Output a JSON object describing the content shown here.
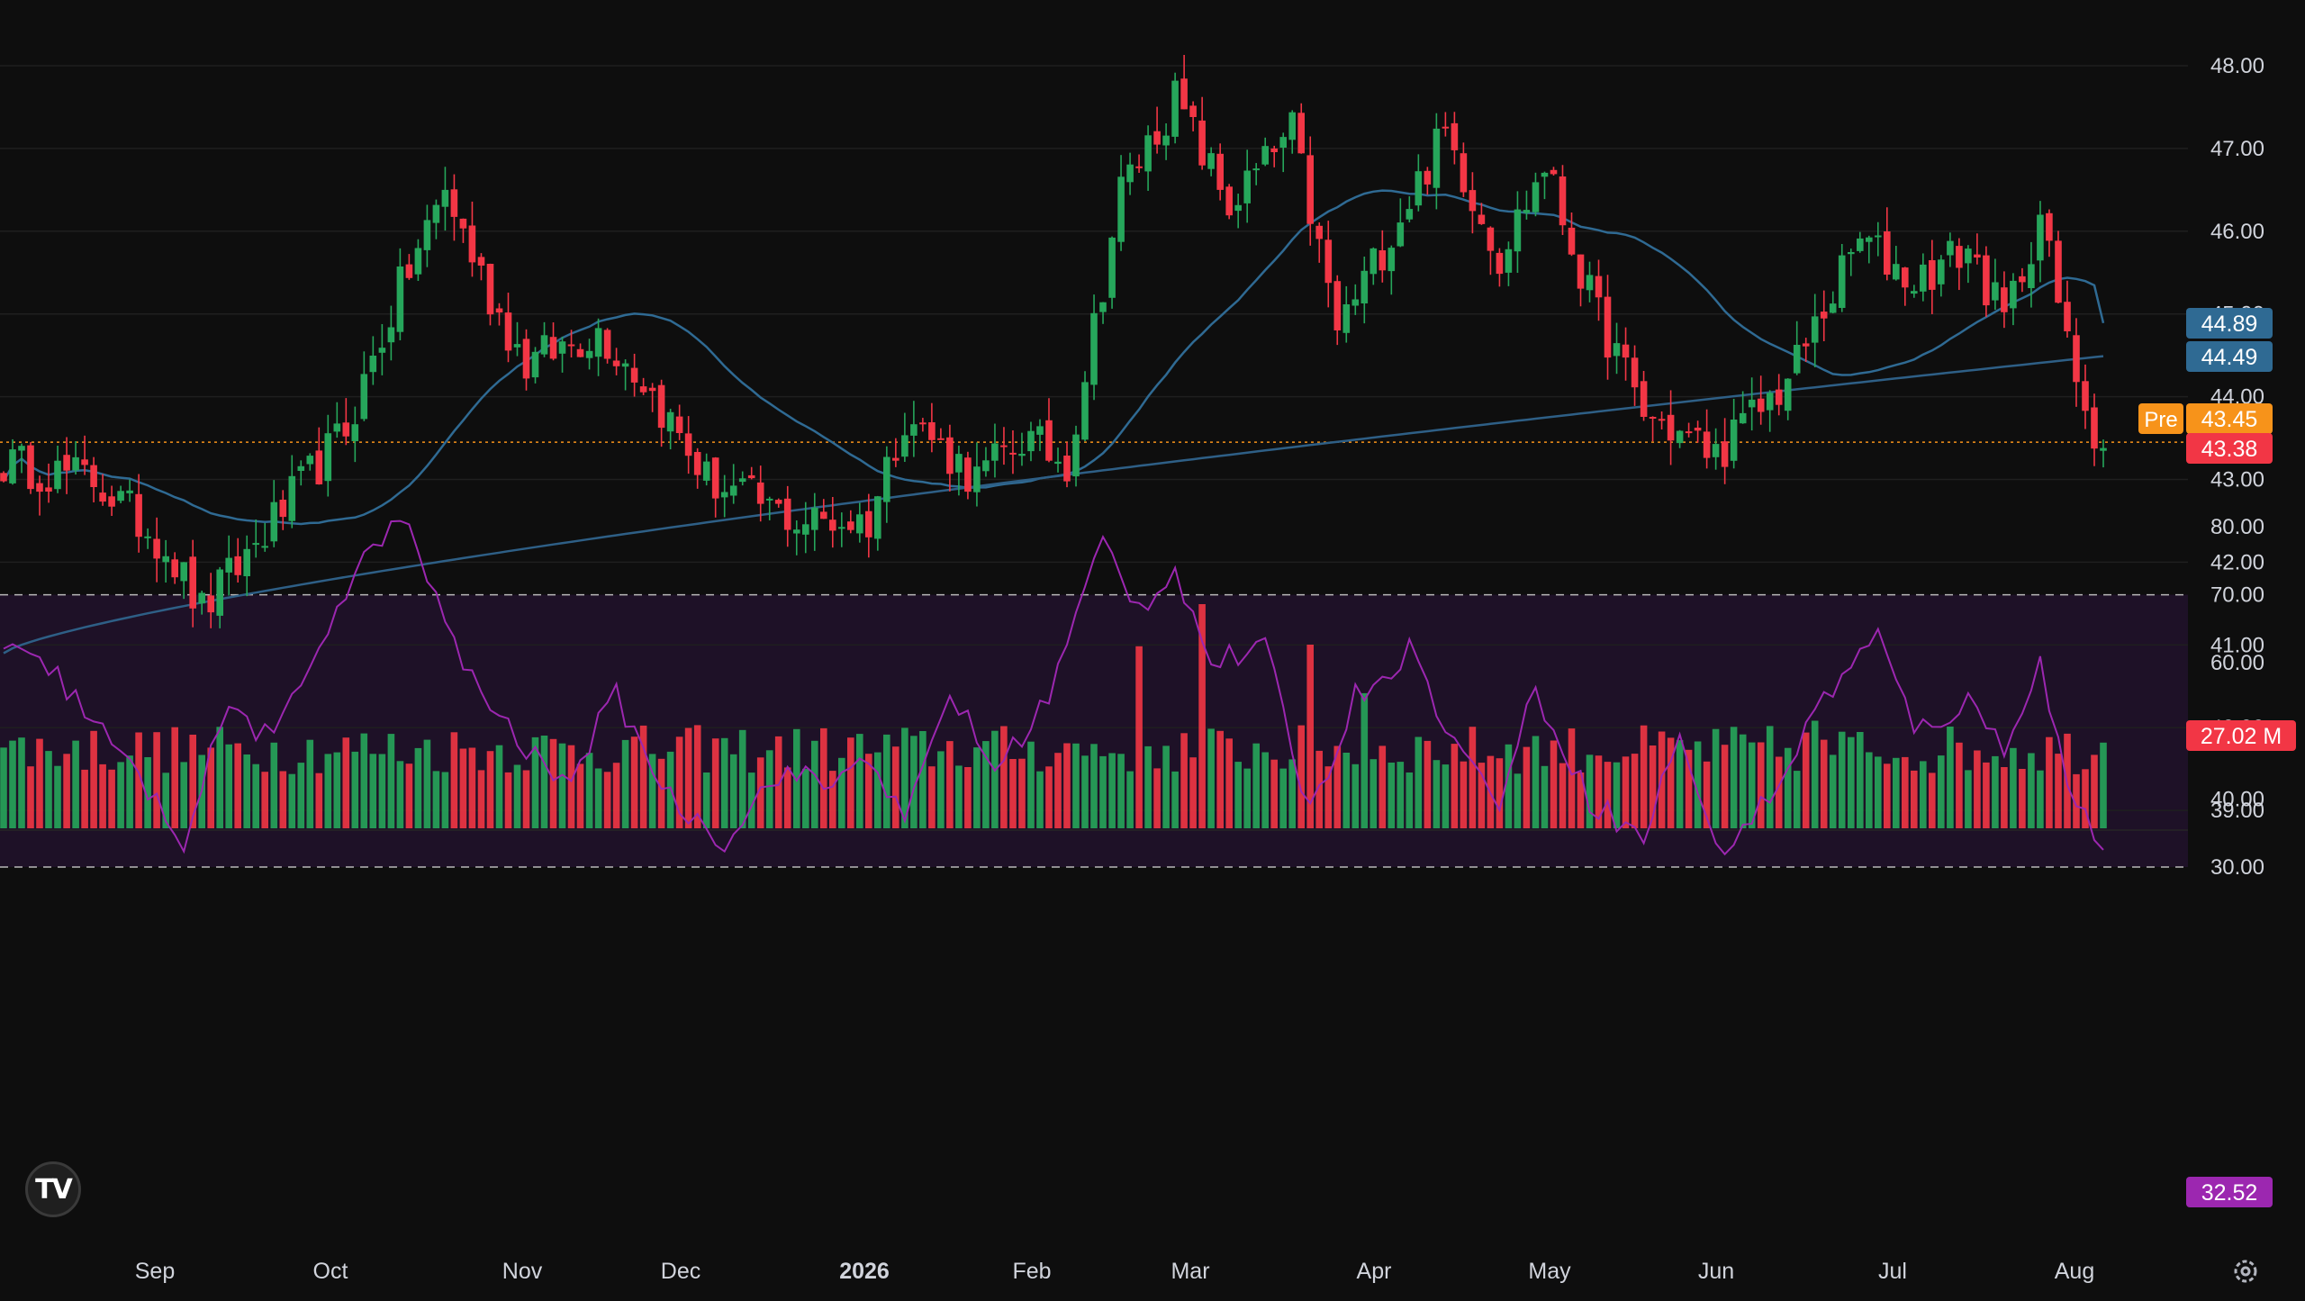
{
  "colors": {
    "background": "#0e0e0e",
    "up": "#26a65b",
    "down": "#f23645",
    "ma_fast": "#2f6a93",
    "ma_slow": "#2e5f86",
    "rsi_line": "#9c27b0",
    "rsi_band": "#1e1127",
    "premarket": "#f7931a",
    "grid_text": "#d1d4dc"
  },
  "price_axis": {
    "ticks": [
      "48.00",
      "47.00",
      "46.00",
      "45.00",
      "44.00",
      "43.00",
      "42.00",
      "41.00",
      "40.00",
      "39.00"
    ],
    "current_badges": [
      {
        "label": "44.89",
        "color": "#2f6a93"
      },
      {
        "label": "44.49",
        "color": "#2f6a93"
      },
      {
        "label": "43.45",
        "color": "#f7931a"
      },
      {
        "label": "43.38",
        "color": "#f23645"
      }
    ],
    "pre_label": "Pre",
    "volume_badge": "27.02 M"
  },
  "rsi_axis": {
    "ticks": [
      "80.00",
      "70.00",
      "60.00",
      "50.00",
      "40.00",
      "30.00"
    ],
    "current": "32.52",
    "upper_band": 70,
    "lower_band": 30
  },
  "time_axis": {
    "labels": [
      "Sep",
      "Oct",
      "Nov",
      "Dec",
      "2026",
      "Feb",
      "Mar",
      "Apr",
      "May",
      "Jun",
      "Jul",
      "Aug"
    ],
    "bold_labels": [
      "2026"
    ]
  },
  "logo": {
    "text": "TV"
  },
  "chart_data": {
    "type": "candlestick",
    "price_range": [
      39,
      48
    ],
    "ma_fast_current": 44.89,
    "ma_slow_current": 44.49,
    "last_close": 43.38,
    "premarket_price": 43.45,
    "anchors": [
      {
        "i": 0,
        "v": 43.2
      },
      {
        "i": 10,
        "v": 43.0
      },
      {
        "i": 18,
        "v": 42.2
      },
      {
        "i": 22,
        "v": 41.4
      },
      {
        "i": 30,
        "v": 42.5
      },
      {
        "i": 38,
        "v": 43.6
      },
      {
        "i": 44,
        "v": 45.3
      },
      {
        "i": 49,
        "v": 46.5
      },
      {
        "i": 54,
        "v": 45.2
      },
      {
        "i": 58,
        "v": 44.4
      },
      {
        "i": 66,
        "v": 44.8
      },
      {
        "i": 71,
        "v": 44.2
      },
      {
        "i": 78,
        "v": 43.0
      },
      {
        "i": 88,
        "v": 42.5
      },
      {
        "i": 96,
        "v": 42.5
      },
      {
        "i": 100,
        "v": 43.8
      },
      {
        "i": 108,
        "v": 43.0
      },
      {
        "i": 113,
        "v": 43.5
      },
      {
        "i": 118,
        "v": 43.2
      },
      {
        "i": 124,
        "v": 46.5
      },
      {
        "i": 130,
        "v": 47.6
      },
      {
        "i": 136,
        "v": 46.3
      },
      {
        "i": 143,
        "v": 47.2
      },
      {
        "i": 148,
        "v": 44.8
      },
      {
        "i": 154,
        "v": 46.0
      },
      {
        "i": 160,
        "v": 47.2
      },
      {
        "i": 166,
        "v": 45.7
      },
      {
        "i": 171,
        "v": 46.8
      },
      {
        "i": 176,
        "v": 45.2
      },
      {
        "i": 182,
        "v": 43.8
      },
      {
        "i": 190,
        "v": 43.3
      },
      {
        "i": 198,
        "v": 44.2
      },
      {
        "i": 206,
        "v": 45.9
      },
      {
        "i": 212,
        "v": 45.4
      },
      {
        "i": 218,
        "v": 45.8
      },
      {
        "i": 222,
        "v": 44.9
      },
      {
        "i": 226,
        "v": 46.2
      },
      {
        "i": 229,
        "v": 44.6
      },
      {
        "i": 233,
        "v": 43.3
      }
    ],
    "volume_spikes": [
      {
        "i": 126,
        "v": 1.8
      },
      {
        "i": 133,
        "v": 2.5
      },
      {
        "i": 145,
        "v": 1.9
      },
      {
        "i": 151,
        "v": 1.7
      },
      {
        "i": 201,
        "v": 1.4
      }
    ],
    "rsi_anchors": [
      {
        "i": 0,
        "v": 62
      },
      {
        "i": 6,
        "v": 58
      },
      {
        "i": 12,
        "v": 48
      },
      {
        "i": 20,
        "v": 34
      },
      {
        "i": 25,
        "v": 54
      },
      {
        "i": 30,
        "v": 48
      },
      {
        "i": 36,
        "v": 66
      },
      {
        "i": 42,
        "v": 79
      },
      {
        "i": 45,
        "v": 80
      },
      {
        "i": 50,
        "v": 62
      },
      {
        "i": 56,
        "v": 50
      },
      {
        "i": 62,
        "v": 42
      },
      {
        "i": 68,
        "v": 55
      },
      {
        "i": 74,
        "v": 40
      },
      {
        "i": 80,
        "v": 34
      },
      {
        "i": 86,
        "v": 44
      },
      {
        "i": 92,
        "v": 42
      },
      {
        "i": 96,
        "v": 47
      },
      {
        "i": 100,
        "v": 36
      },
      {
        "i": 105,
        "v": 56
      },
      {
        "i": 110,
        "v": 44
      },
      {
        "i": 116,
        "v": 55
      },
      {
        "i": 122,
        "v": 78
      },
      {
        "i": 126,
        "v": 68
      },
      {
        "i": 130,
        "v": 74
      },
      {
        "i": 134,
        "v": 60
      },
      {
        "i": 140,
        "v": 62
      },
      {
        "i": 145,
        "v": 38
      },
      {
        "i": 150,
        "v": 55
      },
      {
        "i": 156,
        "v": 62
      },
      {
        "i": 162,
        "v": 46
      },
      {
        "i": 166,
        "v": 40
      },
      {
        "i": 170,
        "v": 56
      },
      {
        "i": 176,
        "v": 40
      },
      {
        "i": 182,
        "v": 34
      },
      {
        "i": 186,
        "v": 50
      },
      {
        "i": 190,
        "v": 32
      },
      {
        "i": 196,
        "v": 40
      },
      {
        "i": 202,
        "v": 55
      },
      {
        "i": 208,
        "v": 64
      },
      {
        "i": 212,
        "v": 50
      },
      {
        "i": 218,
        "v": 54
      },
      {
        "i": 222,
        "v": 48
      },
      {
        "i": 226,
        "v": 60
      },
      {
        "i": 229,
        "v": 42
      },
      {
        "i": 233,
        "v": 32.5
      }
    ],
    "bars_count": 234
  }
}
